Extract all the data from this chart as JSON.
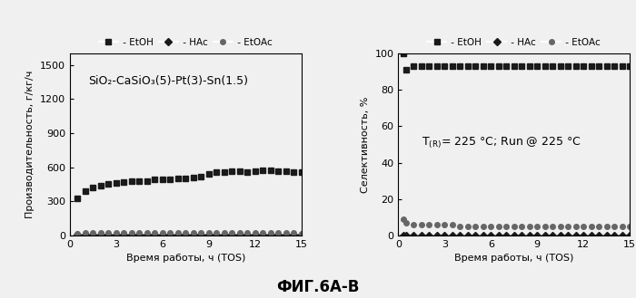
{
  "title": "ФИГ.6А-В",
  "left_plot": {
    "xlabel": "Время работы, ч (TOS)",
    "ylabel": "Производительность, г/кг/ч",
    "annotation": "SiO₂-CaSiO₃(5)-Pt(3)-Sn(1.5)",
    "ylim": [
      0,
      1600
    ],
    "yticks": [
      0,
      300,
      600,
      900,
      1200,
      1500
    ],
    "xlim": [
      0,
      15
    ],
    "xticks": [
      0,
      3,
      6,
      9,
      12,
      15
    ],
    "etoh_x": [
      0.5,
      1.0,
      1.5,
      2.0,
      2.5,
      3.0,
      3.5,
      4.0,
      4.5,
      5.0,
      5.5,
      6.0,
      6.5,
      7.0,
      7.5,
      8.0,
      8.5,
      9.0,
      9.5,
      10.0,
      10.5,
      11.0,
      11.5,
      12.0,
      12.5,
      13.0,
      13.5,
      14.0,
      14.5,
      15.0
    ],
    "etoh_y": [
      330,
      390,
      420,
      440,
      455,
      465,
      470,
      475,
      478,
      480,
      490,
      492,
      495,
      500,
      505,
      510,
      520,
      540,
      555,
      560,
      565,
      565,
      560,
      565,
      570,
      570,
      568,
      565,
      560,
      555
    ],
    "hac_x": [
      0.5,
      1.0,
      1.5,
      2.0,
      2.5,
      3.0,
      3.5,
      4.0,
      4.5,
      5.0,
      5.5,
      6.0,
      6.5,
      7.0,
      7.5,
      8.0,
      8.5,
      9.0,
      9.5,
      10.0,
      10.5,
      11.0,
      11.5,
      12.0,
      12.5,
      13.0,
      13.5,
      14.0,
      14.5,
      15.0
    ],
    "hac_y": [
      5,
      5,
      5,
      5,
      5,
      5,
      5,
      5,
      5,
      5,
      5,
      5,
      5,
      5,
      5,
      5,
      5,
      5,
      5,
      5,
      5,
      5,
      5,
      5,
      5,
      5,
      5,
      5,
      5,
      5
    ],
    "etoac_x": [
      0.5,
      1.0,
      1.5,
      2.0,
      2.5,
      3.0,
      3.5,
      4.0,
      4.5,
      5.0,
      5.5,
      6.0,
      6.5,
      7.0,
      7.5,
      8.0,
      8.5,
      9.0,
      9.5,
      10.0,
      10.5,
      11.0,
      11.5,
      12.0,
      12.5,
      13.0,
      13.5,
      14.0,
      14.5,
      15.0
    ],
    "etoac_y": [
      18,
      20,
      20,
      20,
      20,
      20,
      20,
      20,
      20,
      20,
      20,
      20,
      20,
      20,
      20,
      20,
      20,
      20,
      20,
      20,
      20,
      20,
      20,
      20,
      20,
      20,
      20,
      20,
      20,
      18
    ]
  },
  "right_plot": {
    "xlabel": "Время работы, ч (TOS)",
    "ylabel": "Селективность, %",
    "ylim": [
      0,
      100
    ],
    "yticks": [
      0,
      20,
      40,
      60,
      80,
      100
    ],
    "xlim": [
      0,
      15
    ],
    "xticks": [
      0,
      3,
      6,
      9,
      12,
      15
    ],
    "etoh_x": [
      0.3,
      0.5,
      1.0,
      1.5,
      2.0,
      2.5,
      3.0,
      3.5,
      4.0,
      4.5,
      5.0,
      5.5,
      6.0,
      6.5,
      7.0,
      7.5,
      8.0,
      8.5,
      9.0,
      9.5,
      10.0,
      10.5,
      11.0,
      11.5,
      12.0,
      12.5,
      13.0,
      13.5,
      14.0,
      14.5,
      15.0
    ],
    "etoh_y": [
      100,
      91,
      93,
      93,
      93,
      93,
      93,
      93,
      93,
      93,
      93,
      93,
      93,
      93,
      93,
      93,
      93,
      93,
      93,
      93,
      93,
      93,
      93,
      93,
      93,
      93,
      93,
      93,
      93,
      93,
      93
    ],
    "hac_x": [
      0.3,
      0.5,
      1.0,
      1.5,
      2.0,
      2.5,
      3.0,
      3.5,
      4.0,
      4.5,
      5.0,
      5.5,
      6.0,
      6.5,
      7.0,
      7.5,
      8.0,
      8.5,
      9.0,
      9.5,
      10.0,
      10.5,
      11.0,
      11.5,
      12.0,
      12.5,
      13.0,
      13.5,
      14.0,
      14.5,
      15.0
    ],
    "hac_y": [
      0,
      0,
      0,
      0,
      0,
      0,
      0,
      0,
      0,
      0,
      0,
      0,
      0,
      0,
      0,
      0,
      0,
      0,
      0,
      0,
      0,
      0,
      0,
      0,
      0,
      0,
      0,
      0,
      0,
      0,
      0
    ],
    "etoac_x": [
      0.3,
      0.5,
      1.0,
      1.5,
      2.0,
      2.5,
      3.0,
      3.5,
      4.0,
      4.5,
      5.0,
      5.5,
      6.0,
      6.5,
      7.0,
      7.5,
      8.0,
      8.5,
      9.0,
      9.5,
      10.0,
      10.5,
      11.0,
      11.5,
      12.0,
      12.5,
      13.0,
      13.5,
      14.0,
      14.5,
      15.0
    ],
    "etoac_y": [
      9,
      7,
      6,
      6,
      6,
      6,
      6,
      6,
      5,
      5,
      5,
      5,
      5,
      5,
      5,
      5,
      5,
      5,
      5,
      5,
      5,
      5,
      5,
      5,
      5,
      5,
      5,
      5,
      5,
      5,
      5
    ]
  },
  "legend": {
    "etoh_label": " - EtOH",
    "hac_label": " - HAc",
    "etoac_label": " - EtOAc",
    "etoh_color": "#1a1a1a",
    "hac_color": "#1a1a1a",
    "etoac_color": "#666666",
    "etoh_marker": "s",
    "hac_marker": "D",
    "etoac_marker": "o",
    "marker_size": 4
  },
  "bg_color": "#f0f0f0",
  "plot_bg": "#f0f0f0",
  "axes_color": "#000000",
  "title_fontsize": 12,
  "label_fontsize": 8,
  "tick_fontsize": 8,
  "legend_fontsize": 7.5,
  "annotation_fontsize": 8
}
